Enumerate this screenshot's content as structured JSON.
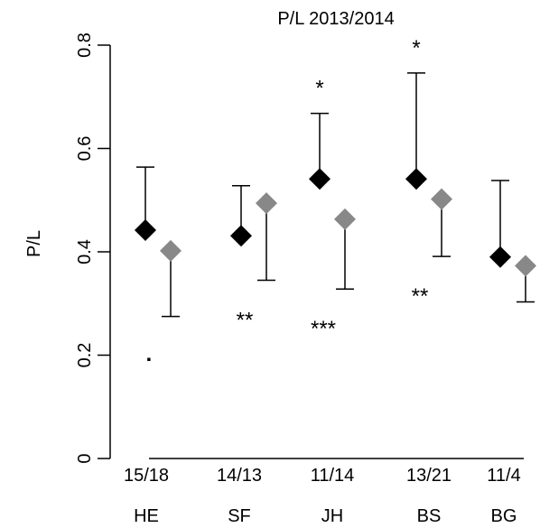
{
  "chart_data": {
    "type": "scatter",
    "title": "P/L  2013/2014",
    "ylabel": "P/L",
    "xlabel": "",
    "ylim": [
      0,
      0.8
    ],
    "yticks": [
      "0",
      "0.2",
      "0.4",
      "0.6",
      "0.8"
    ],
    "ytick_values": [
      0,
      0.2,
      0.4,
      0.6,
      0.8
    ],
    "grid": false,
    "categories": [
      "HE",
      "SF",
      "JH",
      "BS",
      "BG"
    ],
    "sample_sizes": [
      "15/18",
      "14/13",
      "11/14",
      "13/21",
      "11/4"
    ],
    "series": [
      {
        "color": "#000000",
        "marker": "diamond",
        "values": [
          0.442,
          0.431,
          0.541,
          0.541,
          0.39
        ],
        "error_upper": [
          0.564,
          0.528,
          0.668,
          0.746,
          0.538
        ],
        "annotations": [
          "",
          "",
          "*",
          "*",
          ""
        ]
      },
      {
        "color": "#888888",
        "marker": "diamond",
        "values": [
          0.402,
          0.494,
          0.463,
          0.502,
          0.373
        ],
        "error_lower": [
          0.275,
          0.345,
          0.328,
          0.391,
          0.303
        ],
        "annotations": [
          "▪",
          "**",
          "***",
          "**",
          ""
        ]
      }
    ]
  }
}
